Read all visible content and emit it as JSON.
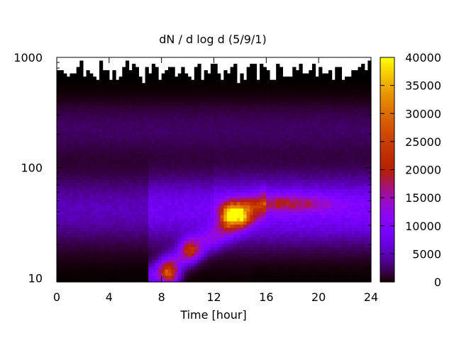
{
  "chart_data": {
    "type": "heatmap",
    "title": "dN / d log d (5/9/1)",
    "xlabel": "Time [hour]",
    "ylabel": "",
    "x_range": [
      0,
      24
    ],
    "x_ticks": [
      0,
      4,
      8,
      12,
      16,
      20,
      24
    ],
    "y_scale": "log",
    "y_range": [
      9.2,
      1000
    ],
    "y_ticks": [
      10,
      100,
      1000
    ],
    "colorbar": {
      "range": [
        0,
        40000
      ],
      "ticks": [
        0,
        5000,
        10000,
        15000,
        20000,
        25000,
        30000,
        35000,
        40000
      ],
      "colormap": "gnuplot-black-blue-purple-red-yellow"
    },
    "colors": {
      "background": "#ffffff",
      "no_data": "#ffffff",
      "axis": "#000000"
    },
    "features": [
      {
        "label": "main growth peak",
        "time_h": 13.2,
        "diameter": 38,
        "value": 36000
      },
      {
        "label": "secondary peak",
        "time_h": 14.1,
        "diameter": 38,
        "value": 30000
      },
      {
        "label": "early burst 1",
        "time_h": 8.6,
        "diameter": 11,
        "value": 30000
      },
      {
        "label": "early burst 2",
        "time_h": 10.2,
        "diameter": 18,
        "value": 22000
      },
      {
        "label": "late mode",
        "time_h": 17.5,
        "diameter": 48,
        "value": 19000
      },
      {
        "label": "background mode",
        "time_h": 12,
        "diameter": 45,
        "value": 11000
      }
    ]
  }
}
